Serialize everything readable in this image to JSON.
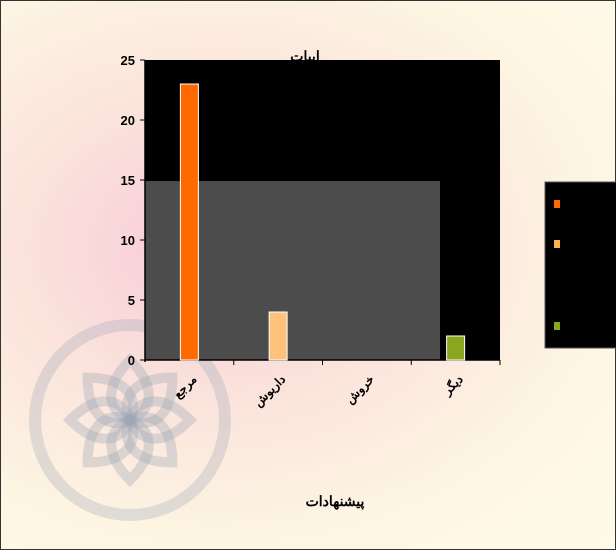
{
  "chart_data": {
    "type": "bar",
    "title": "ابیات",
    "xlabel": "پیشنهادات",
    "ylabel": "",
    "ylim": [
      0,
      25
    ],
    "yticks": [
      0,
      5,
      10,
      15,
      20,
      25
    ],
    "categories": [
      "مرجع",
      "داریوش",
      "خروش",
      "دیگر"
    ],
    "values": [
      23,
      4,
      0,
      2
    ],
    "data_labels": [
      "23",
      "",
      "",
      ""
    ],
    "bar_colors": [
      "#ff6a00",
      "#ffc27a",
      "#ff8a3d",
      "#8aa61e"
    ],
    "plot_background": "#000000",
    "grid": false,
    "legend": {
      "placement": "right",
      "swatches": [
        "#ff6a00",
        "#ffb050",
        "#8aa61e"
      ]
    }
  }
}
